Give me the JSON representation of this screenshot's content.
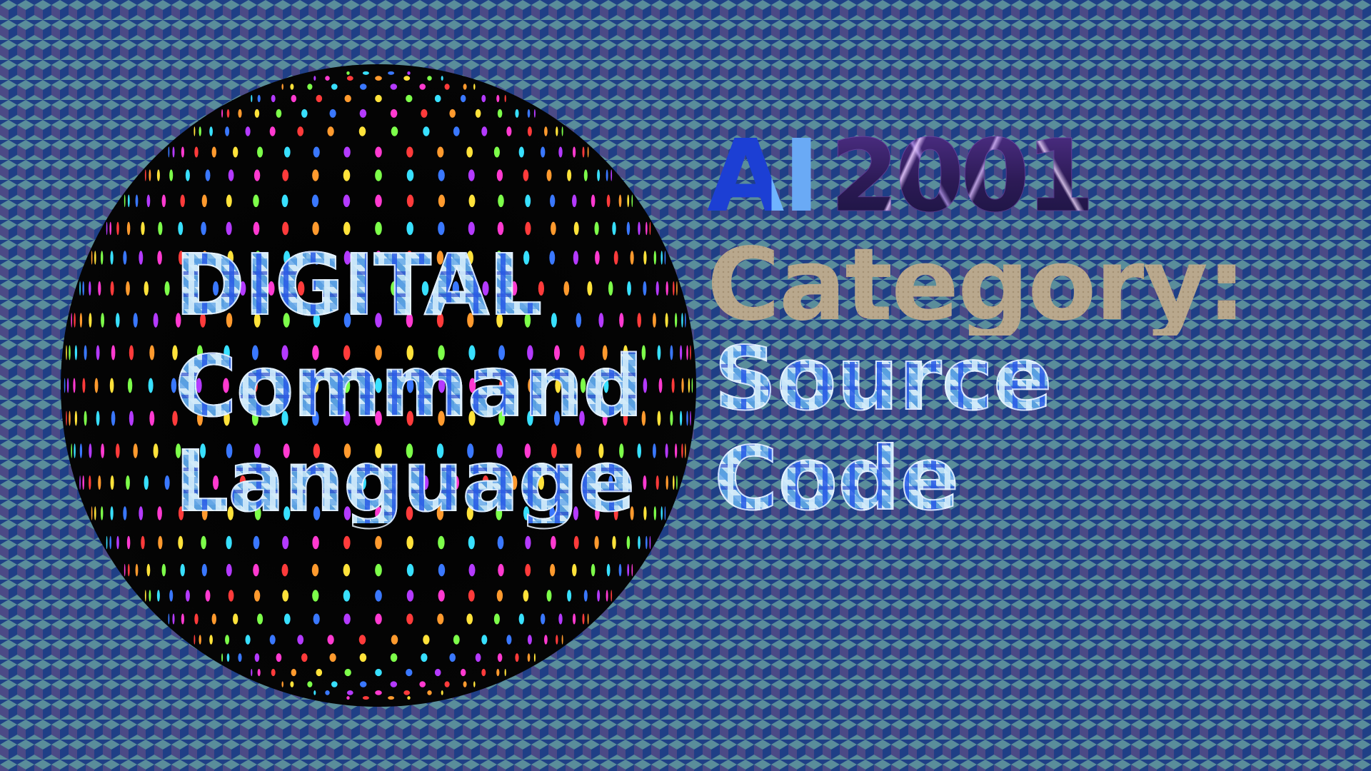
{
  "title": {
    "lines": [
      "DIGITAL",
      "Command",
      "Language"
    ]
  },
  "heading": {
    "ai": "AI",
    "year": "2001",
    "category_label": "Category:",
    "category_value_lines": [
      "Source",
      "Code"
    ]
  },
  "colors": {
    "background_blue": "#1f3f86",
    "background_teal": "#5a8d9a",
    "background_purple": "#4b4a86",
    "sphere": "#000000",
    "category_text": "#b4a48a",
    "mosaic_text": "#a8d4ef",
    "ai_text": "#2d4fd8",
    "year_text": "#3a2668"
  },
  "decorations": {
    "background_pattern": "isometric-cube-tiles",
    "sphere_pattern": "rainbow-oval-dots"
  }
}
